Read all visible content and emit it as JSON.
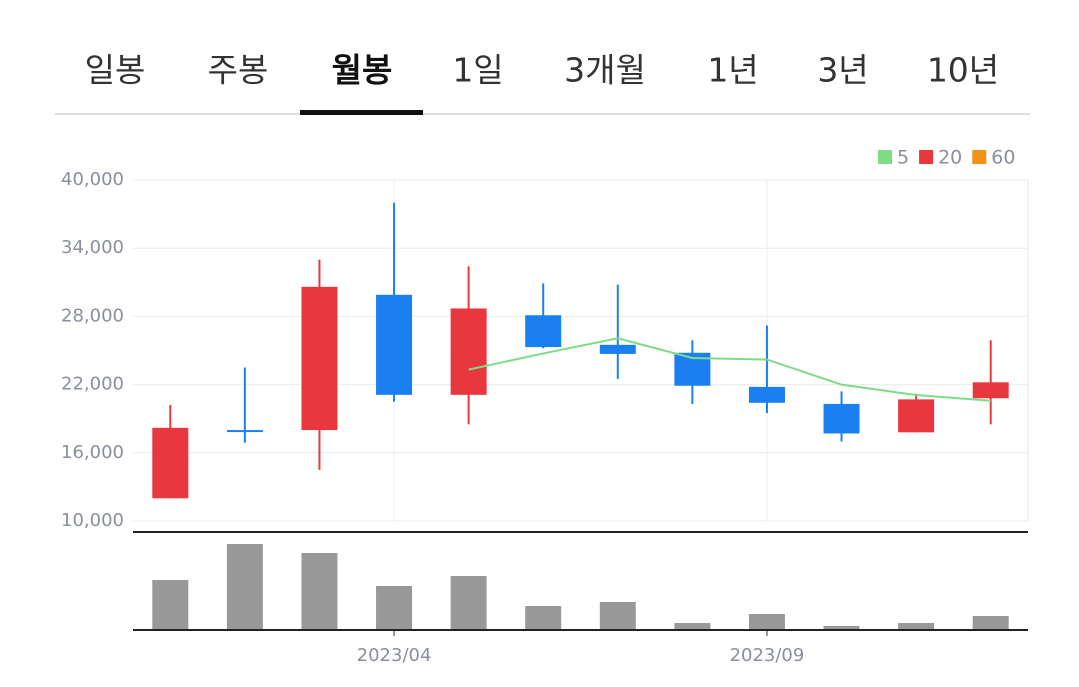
{
  "tabs": [
    "일봉",
    "주봉",
    "월봉",
    "1일",
    "3개월",
    "1년",
    "3년",
    "10년"
  ],
  "selected_tab": 2,
  "chart_data": {
    "type": "candlestick",
    "categories": [
      null,
      null,
      null,
      "2023/04",
      null,
      null,
      null,
      null,
      "2023/09",
      null,
      null,
      null
    ],
    "open": [
      12000,
      18000,
      18000,
      29900,
      21100,
      28100,
      25500,
      24800,
      21800,
      20300,
      17800,
      20800
    ],
    "high": [
      20200,
      23500,
      33000,
      38000,
      32400,
      30900,
      30800,
      25900,
      27200,
      21400,
      21200,
      25900
    ],
    "low": [
      12000,
      16900,
      14500,
      20500,
      18500,
      25200,
      22500,
      20300,
      19500,
      17000,
      17800,
      18500
    ],
    "close": [
      18200,
      18000,
      30600,
      21100,
      28700,
      25300,
      24700,
      21900,
      20400,
      17700,
      20700,
      22200
    ],
    "up_color": "#e8383d",
    "down_color": "#1a7ff0",
    "volume": [
      50,
      86,
      77,
      44,
      54,
      24,
      28,
      7,
      16,
      4,
      7,
      14
    ],
    "volume_color": "#999999",
    "series": [
      {
        "name": "5",
        "color": "#7edc86",
        "values": [
          null,
          null,
          null,
          null,
          23320,
          24740,
          26080,
          24340,
          24200,
          22000,
          21080,
          20580
        ]
      },
      {
        "name": "20",
        "color": "#e8383d"
      },
      {
        "name": "60",
        "color": "#f39017"
      }
    ],
    "ylim": [
      10000,
      40000
    ],
    "yticks": [
      {
        "value": 10000,
        "label": "10,000"
      },
      {
        "value": 16000,
        "label": "16,000"
      },
      {
        "value": 22000,
        "label": "22,000"
      },
      {
        "value": 28000,
        "label": "28,000"
      },
      {
        "value": 34000,
        "label": "34,000"
      },
      {
        "value": 40000,
        "label": "40,000"
      }
    ],
    "grid": true,
    "legend": "top-right"
  }
}
